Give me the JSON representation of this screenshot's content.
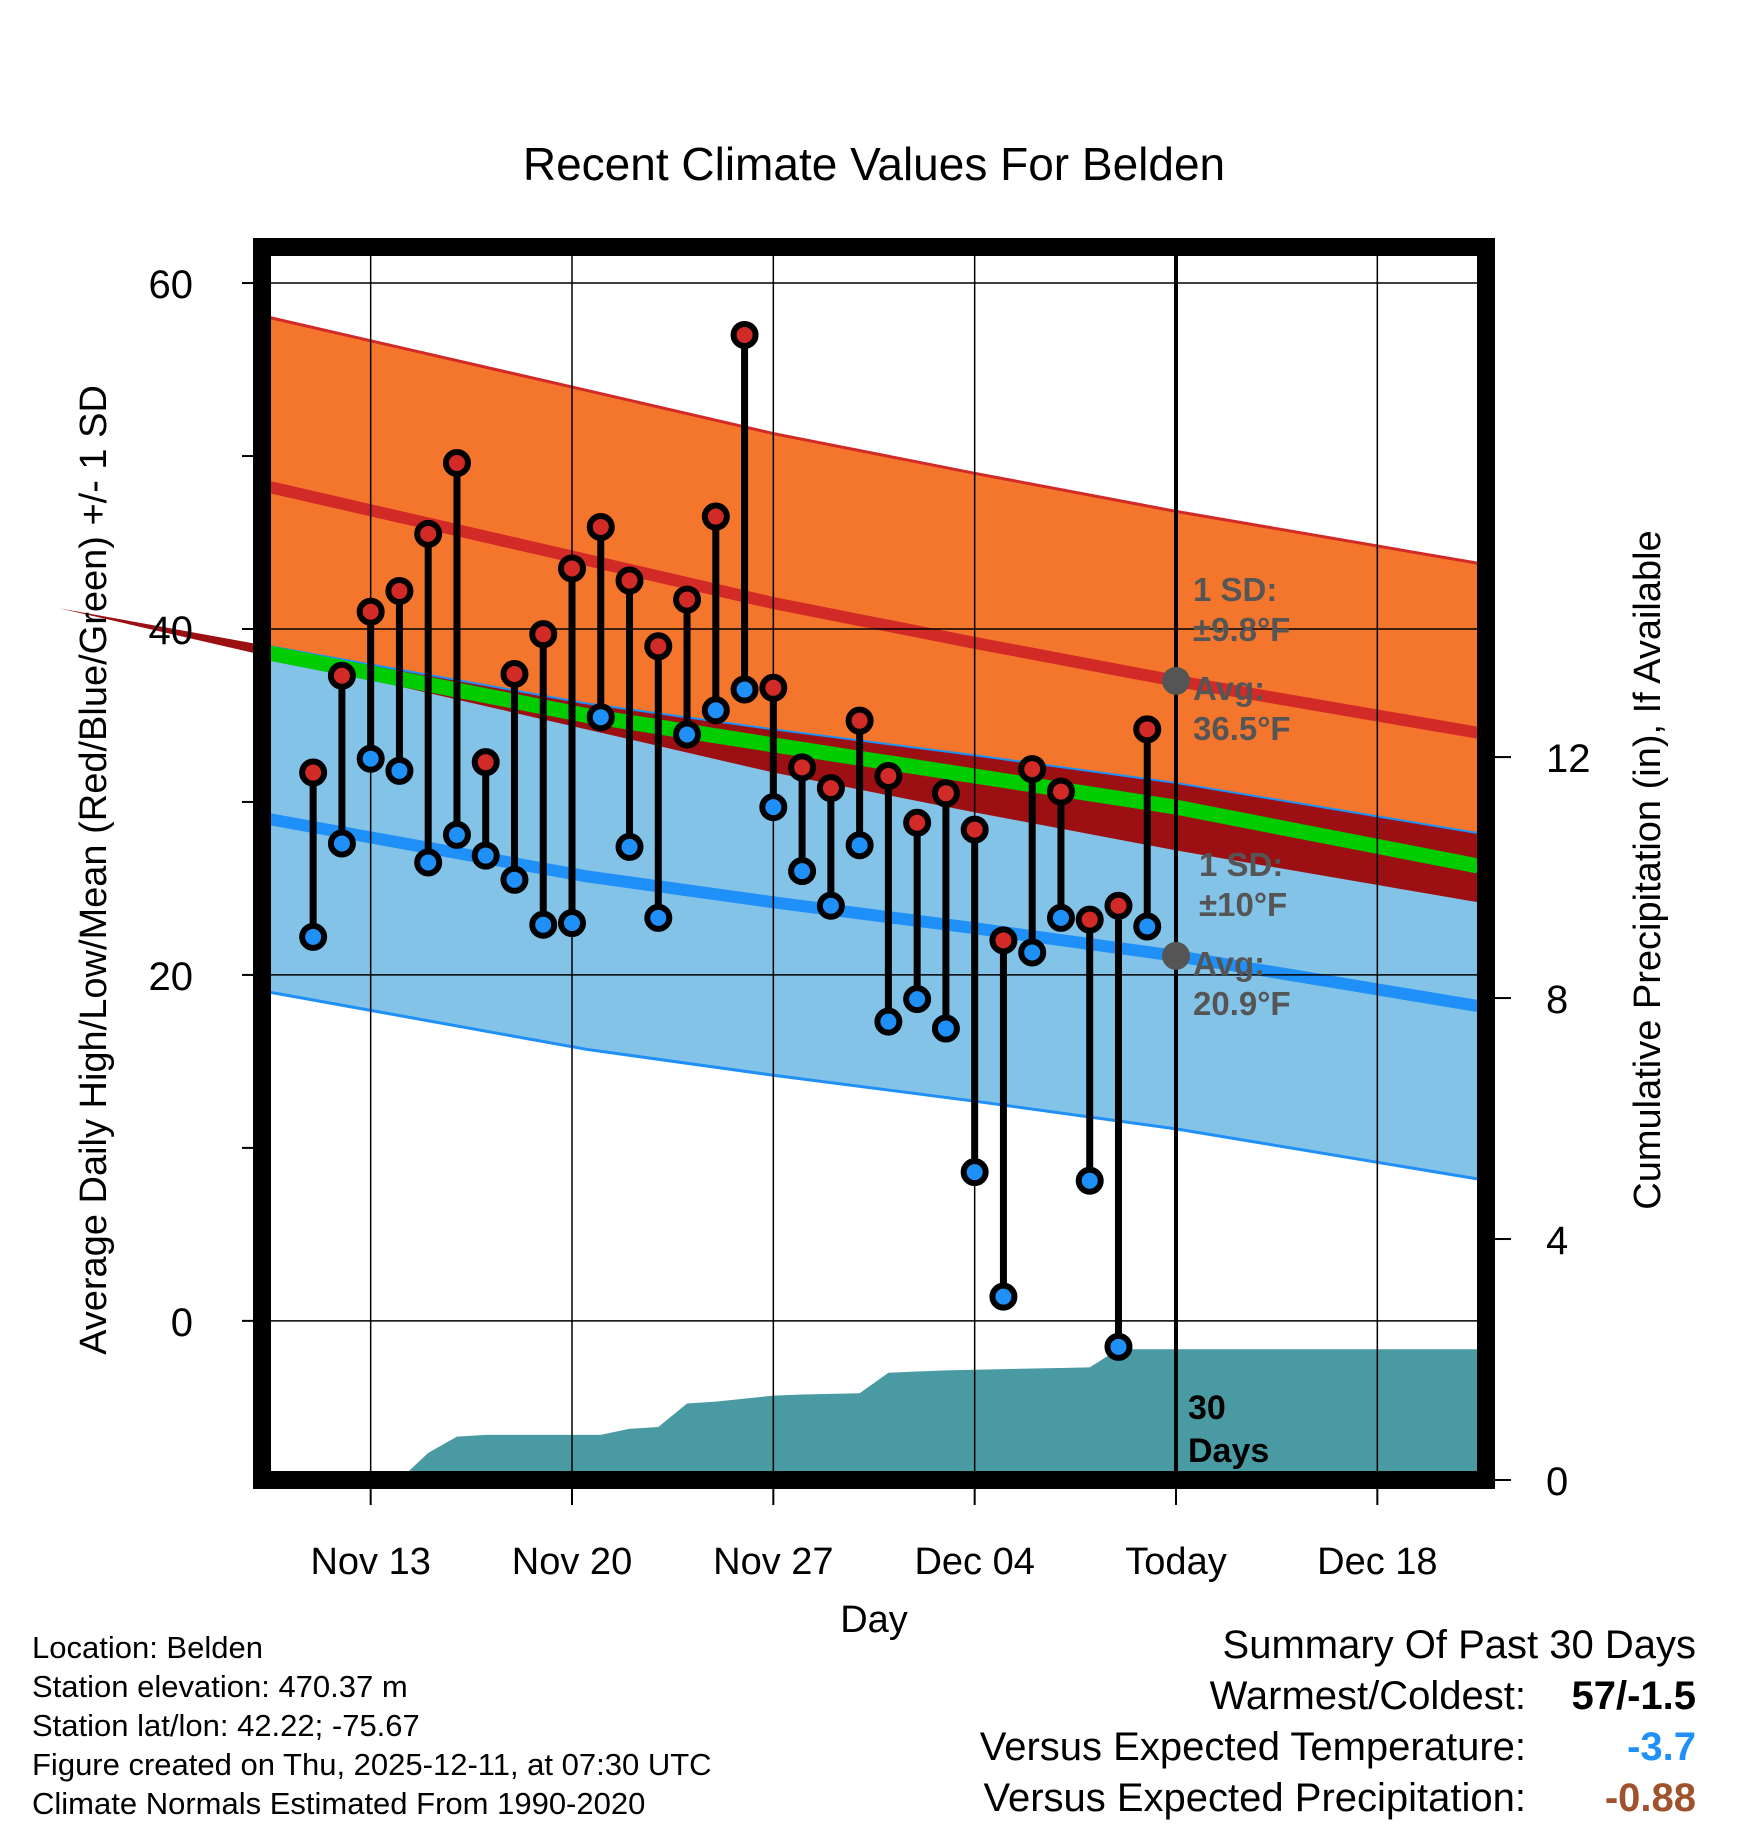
{
  "chart_data": {
    "type": "line",
    "title": "Recent Climate Values For Belden",
    "xlabel": "Day",
    "ylabel": "Average Daily High/Low/Mean (Red/Blue/Green) +/- 1 SD",
    "y2label": "Cumulative Precipitation (in), If Available",
    "x_ticks": [
      {
        "day": 3,
        "label": "Nov 13"
      },
      {
        "day": 10,
        "label": "Nov 20"
      },
      {
        "day": 17,
        "label": "Nov 27"
      },
      {
        "day": 24,
        "label": "Dec 04"
      },
      {
        "day": 31,
        "label": "Today"
      },
      {
        "day": 38,
        "label": "Dec 18"
      }
    ],
    "xlim": [
      -0.5,
      41.5
    ],
    "ylim": [
      -9.2,
      62.2
    ],
    "y_ticks": [
      0,
      20,
      40,
      60
    ],
    "y2lim": [
      0,
      20.5
    ],
    "y2_ticks": [
      0,
      4,
      8,
      12
    ],
    "today_day": 31,
    "normals": {
      "days": [
        -0.5,
        10.5,
        17,
        24,
        31,
        41.5
      ],
      "high_mean": [
        48.2,
        44.0,
        41.5,
        39.2,
        37.0,
        34.0
      ],
      "high_sd": 9.8,
      "low_mean": [
        29.0,
        25.7,
        24.2,
        22.7,
        21.1,
        18.2
      ],
      "low_sd": 10,
      "avg_mean": [
        38.6,
        35.0,
        33.3,
        31.5,
        29.7,
        26.3
      ]
    },
    "daily": {
      "days": [
        1,
        2,
        3,
        4,
        5,
        6,
        7,
        8,
        9,
        10,
        11,
        12,
        13,
        14,
        15,
        16,
        17,
        18,
        19,
        20,
        21,
        22,
        23,
        24,
        25,
        26,
        27,
        28,
        29,
        30
      ],
      "highs": [
        31.7,
        37.3,
        41.0,
        42.2,
        45.5,
        49.6,
        32.3,
        37.4,
        39.7,
        43.5,
        45.9,
        42.8,
        39.0,
        41.7,
        46.5,
        57.0,
        36.6,
        32.0,
        30.8,
        34.7,
        31.5,
        28.8,
        30.5,
        28.4,
        22.0,
        31.9,
        30.6,
        23.2,
        24.0,
        34.2
      ],
      "lows": [
        22.2,
        27.6,
        32.5,
        31.8,
        26.5,
        28.1,
        26.9,
        25.5,
        22.9,
        23.0,
        34.9,
        27.4,
        23.3,
        33.9,
        35.3,
        36.5,
        29.7,
        26.0,
        24.0,
        27.5,
        17.3,
        18.6,
        16.9,
        8.6,
        1.4,
        21.3,
        23.3,
        8.1,
        -1.5,
        22.8
      ]
    },
    "precip": {
      "days": [
        -0.5,
        0,
        1,
        2,
        3,
        4,
        5,
        6,
        7,
        8,
        9,
        10,
        11,
        12,
        13,
        14,
        15,
        16,
        17,
        18,
        19,
        20,
        21,
        22,
        23,
        24,
        25,
        26,
        27,
        28,
        29,
        30,
        31,
        41.5
      ],
      "cumulative": [
        0,
        0,
        0,
        0,
        0,
        0,
        0.45,
        0.72,
        0.75,
        0.75,
        0.75,
        0.75,
        0.75,
        0.85,
        0.88,
        1.27,
        1.3,
        1.35,
        1.4,
        1.42,
        1.43,
        1.44,
        1.78,
        1.8,
        1.82,
        1.83,
        1.84,
        1.85,
        1.86,
        1.87,
        2.17,
        2.17,
        2.17,
        2.17
      ]
    },
    "annotations": {
      "high_sd_line1": "1 SD:",
      "high_sd_line2": "±9.8°F",
      "high_avg_line1": "Avg:",
      "high_avg_line2": "36.5°F",
      "low_sd_line1": "1 SD:",
      "low_sd_line2": "±10°F",
      "low_avg_line1": "Avg:",
      "low_avg_line2": "20.9°F",
      "days_line1": "30",
      "days_line2": "Days"
    },
    "colors": {
      "high_band": "#f4762c",
      "high_line": "#d22a26",
      "low_band": "#84c3e8",
      "low_line": "#1f90f8",
      "avg_line": "#00cc00",
      "overlap": "#9c1014",
      "precip": "#4a9aa4",
      "marker_high": "#d22a26",
      "marker_low": "#1f90f8",
      "annotation": "#555555"
    }
  },
  "footer": {
    "location": "Location: Belden",
    "elevation": "Station elevation: 470.37 m",
    "latlon": "Station lat/lon: 42.22; -75.67",
    "created": "Figure created on Thu, 2025-12-11, at 07:30 UTC",
    "normals": "Climate Normals Estimated From 1990-2020"
  },
  "summary": {
    "title": "Summary Of Past 30 Days",
    "warmest_label": "Warmest/Coldest:",
    "warmest_value": "57/-1.5",
    "temp_label": "Versus Expected Temperature:",
    "temp_value": "-3.7",
    "temp_color": "#1f90f8",
    "precip_label": "Versus Expected Precipitation:",
    "precip_value": "-0.88",
    "precip_color": "#a0522d"
  }
}
